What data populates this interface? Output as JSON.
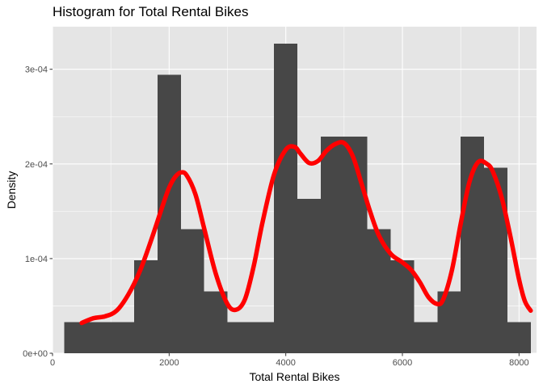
{
  "chart_data": {
    "type": "bar",
    "subtype": "histogram-with-density-line",
    "title": "Histogram for Total Rental Bikes",
    "xlabel": "Total Rental Bikes",
    "ylabel": "Density",
    "xlim": [
      0,
      8300
    ],
    "ylim": [
      0,
      0.000345
    ],
    "x_ticks": [
      {
        "value": 0,
        "label": "0"
      },
      {
        "value": 2000,
        "label": "2000"
      },
      {
        "value": 4000,
        "label": "4000"
      },
      {
        "value": 6000,
        "label": "6000"
      },
      {
        "value": 8000,
        "label": "8000"
      }
    ],
    "y_ticks": [
      {
        "value": 0,
        "label": "0e+00"
      },
      {
        "value": 0.0001,
        "label": "1e-04"
      },
      {
        "value": 0.0002,
        "label": "2e-04"
      },
      {
        "value": 0.0003,
        "label": "3e-04"
      }
    ],
    "bins": [
      {
        "x0": 200,
        "x1": 600,
        "density": 3.27e-05
      },
      {
        "x0": 600,
        "x1": 1000,
        "density": 3.27e-05
      },
      {
        "x0": 1000,
        "x1": 1400,
        "density": 3.27e-05
      },
      {
        "x0": 1400,
        "x1": 1800,
        "density": 9.81e-05
      },
      {
        "x0": 1800,
        "x1": 2200,
        "density": 0.000294
      },
      {
        "x0": 2200,
        "x1": 2600,
        "density": 0.000131
      },
      {
        "x0": 2600,
        "x1": 3000,
        "density": 6.54e-05
      },
      {
        "x0": 3000,
        "x1": 3400,
        "density": 3.27e-05
      },
      {
        "x0": 3400,
        "x1": 3800,
        "density": 3.27e-05
      },
      {
        "x0": 3800,
        "x1": 4200,
        "density": 0.000327
      },
      {
        "x0": 4200,
        "x1": 4600,
        "density": 0.000163
      },
      {
        "x0": 4600,
        "x1": 5000,
        "density": 0.000229
      },
      {
        "x0": 5000,
        "x1": 5400,
        "density": 0.000229
      },
      {
        "x0": 5400,
        "x1": 5800,
        "density": 0.000131
      },
      {
        "x0": 5800,
        "x1": 6200,
        "density": 9.81e-05
      },
      {
        "x0": 6200,
        "x1": 6600,
        "density": 3.27e-05
      },
      {
        "x0": 6600,
        "x1": 7000,
        "density": 6.54e-05
      },
      {
        "x0": 7000,
        "x1": 7400,
        "density": 0.000229
      },
      {
        "x0": 7400,
        "x1": 7800,
        "density": 0.000196
      },
      {
        "x0": 7800,
        "x1": 8200,
        "density": 3.27e-05
      }
    ],
    "density_curve": {
      "x": [
        500,
        700,
        900,
        1100,
        1300,
        1500,
        1700,
        1900,
        2000,
        2100,
        2200,
        2300,
        2450,
        2600,
        2800,
        3000,
        3150,
        3300,
        3450,
        3600,
        3800,
        4000,
        4150,
        4250,
        4400,
        4550,
        4700,
        4850,
        5000,
        5150,
        5300,
        5450,
        5600,
        5800,
        6000,
        6150,
        6300,
        6450,
        6600,
        6700,
        6850,
        7000,
        7150,
        7300,
        7450,
        7550,
        7700,
        7850,
        8000,
        8100,
        8200
      ],
      "y": [
        3.2e-05,
        3.7e-05,
        3.9e-05,
        4.5e-05,
        6.2e-05,
        8.7e-05,
        0.000121,
        0.000158,
        0.000175,
        0.000186,
        0.000191,
        0.000188,
        0.000168,
        0.000132,
        8.4e-05,
        5.2e-05,
        4.6e-05,
        5.7e-05,
        9.2e-05,
        0.000138,
        0.000189,
        0.000215,
        0.000218,
        0.000211,
        0.000201,
        0.000203,
        0.000214,
        0.000221,
        0.000222,
        0.000208,
        0.000179,
        0.000149,
        0.000124,
        0.000105,
        9.6e-05,
        8.8e-05,
        7.5e-05,
        5.9e-05,
        5.2e-05,
        5.7e-05,
        8.8e-05,
        0.000137,
        0.000181,
        0.000202,
        0.0002,
        0.000192,
        0.000165,
        0.000124,
        7.8e-05,
        5.5e-05,
        4.5e-05
      ]
    },
    "colors": {
      "bars": "#474747",
      "density_line": "#ff0000",
      "panel_background": "#e5e5e5",
      "grid": "#ffffff"
    },
    "grid": true,
    "legend": "none"
  }
}
